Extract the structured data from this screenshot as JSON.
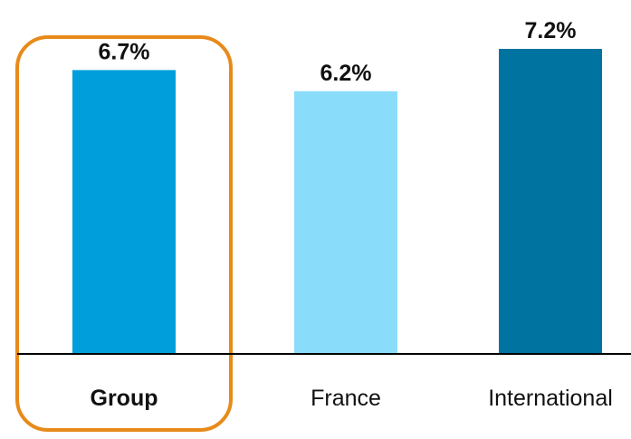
{
  "chart_data": {
    "type": "bar",
    "categories": [
      "Group",
      "France",
      "International"
    ],
    "values": [
      6.7,
      6.2,
      7.2
    ],
    "value_labels": [
      "6.7%",
      "6.2%",
      "7.2%"
    ],
    "bar_colors": [
      "#009fdb",
      "#8adcfb",
      "#0073a0"
    ],
    "highlighted_category": "Group",
    "highlight_color": "#e88a1a",
    "axis_color": "#000000",
    "grid": false,
    "legend": "none",
    "title": "",
    "xlabel": "",
    "ylabel": ""
  }
}
